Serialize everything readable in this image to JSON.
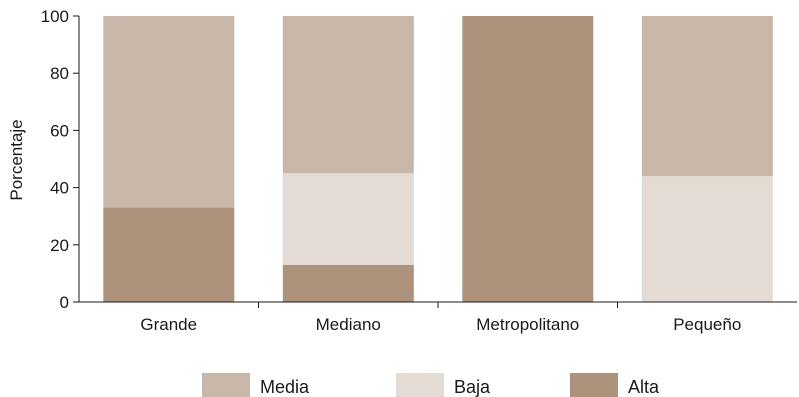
{
  "chart_data": {
    "type": "bar",
    "stacked": true,
    "categories": [
      "Grande",
      "Mediano",
      "Metropolitano",
      "Pequeño"
    ],
    "series": [
      {
        "name": "Alta",
        "color": "#ad937c",
        "values": [
          33,
          13,
          100,
          0
        ]
      },
      {
        "name": "Baja",
        "color": "#e3dbd4",
        "values": [
          0,
          32,
          0,
          44
        ]
      },
      {
        "name": "Media",
        "color": "#c8b7a9",
        "values": [
          67,
          55,
          0,
          56
        ]
      }
    ],
    "legend_order": [
      "Media",
      "Baja",
      "Alta"
    ],
    "legend_position": "bottom",
    "title": "",
    "xlabel": "",
    "ylabel": "Porcentaje",
    "ylim": [
      0,
      100
    ],
    "yticks": [
      0,
      20,
      40,
      60,
      80,
      100
    ],
    "grid": false
  }
}
